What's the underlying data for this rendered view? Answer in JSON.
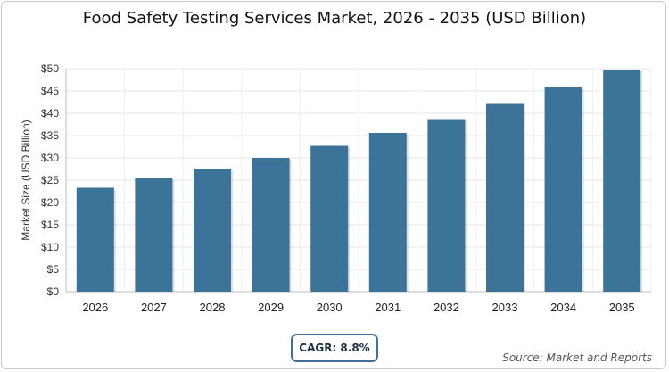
{
  "chart_data": {
    "type": "bar",
    "title": "Food Safety Testing Services Market, 2026 - 2035 (USD Billion)",
    "xlabel": "",
    "ylabel": "Market Size (USD Billion)",
    "categories": [
      "2026",
      "2027",
      "2028",
      "2029",
      "2030",
      "2031",
      "2032",
      "2033",
      "2034",
      "2035"
    ],
    "series": [
      {
        "values": [
          23.3,
          25.4,
          27.6,
          30.0,
          32.7,
          35.6,
          38.7,
          42.1,
          45.8,
          49.8
        ]
      }
    ],
    "ylim": [
      0,
      50
    ],
    "yticks": [
      0,
      5,
      10,
      15,
      20,
      25,
      30,
      35,
      40,
      45,
      50
    ],
    "ytick_labels": [
      "$0",
      "$5",
      "$10",
      "$15",
      "$20",
      "$25",
      "$30",
      "$35",
      "$40",
      "$45",
      "$50"
    ],
    "grid": true,
    "bar_color": "#3b7399"
  },
  "badge": {
    "cagr": "CAGR: 8.8%"
  },
  "source": "Source: Market and Reports"
}
